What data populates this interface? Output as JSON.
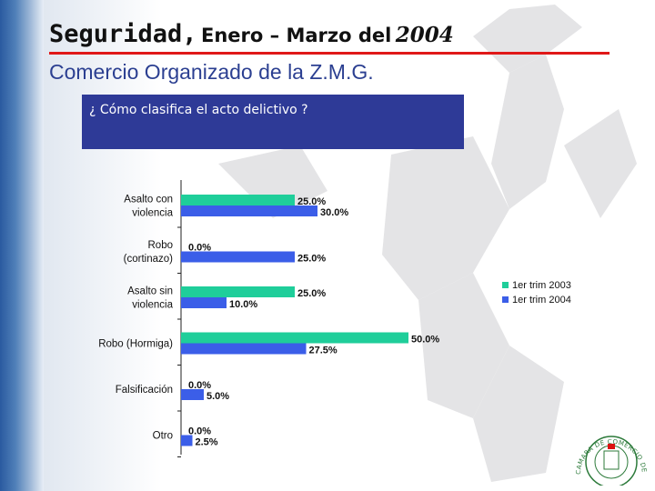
{
  "header": {
    "title_word": "Seguridad,",
    "title_range": "Enero – Marzo del",
    "title_year": "2004",
    "subtitle": "Comercio Organizado de la Z.M.G."
  },
  "question": "¿ Cómo clasifica el acto delictivo ?",
  "colors": {
    "series_2003": "#1fce9a",
    "series_2004": "#3b5ee8",
    "question_box": "#2e3a97",
    "rule": "#e01818"
  },
  "chart_data": {
    "type": "bar",
    "orientation": "horizontal",
    "categories": [
      [
        "Asalto con",
        "violencia"
      ],
      [
        "Robo",
        "(cortinazo)"
      ],
      [
        "Asalto sin",
        "violencia"
      ],
      [
        "Robo (Hormiga)"
      ],
      [
        "Falsificación"
      ],
      [
        "Otro"
      ]
    ],
    "series": [
      {
        "name": "1er trim 2003",
        "values": [
          25.0,
          0.0,
          25.0,
          50.0,
          0.0,
          0.0
        ],
        "labels": [
          "25.0%",
          "0.0%",
          "25.0%",
          "50.0%",
          "0.0%",
          "0.0%"
        ]
      },
      {
        "name": "1er trim 2004",
        "values": [
          30.0,
          25.0,
          10.0,
          27.5,
          5.0,
          2.5
        ],
        "labels": [
          "30.0%",
          "25.0%",
          "10.0%",
          "27.5%",
          "5.0%",
          "2.5%"
        ]
      }
    ],
    "xlim": [
      0,
      50
    ],
    "grid": false,
    "legend_position": "right"
  },
  "seal": {
    "text": "CAMARA DE COMERCIO DE GUADALAJARA"
  }
}
